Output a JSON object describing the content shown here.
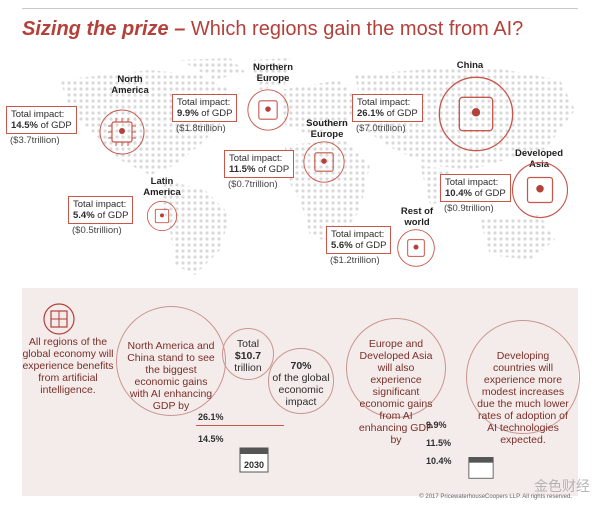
{
  "title": {
    "lead": "Sizing the prize –",
    "rest": " Which regions gain the most from AI?"
  },
  "regions": [
    {
      "id": "north-america",
      "name": "North America",
      "impact_label": "Total impact:",
      "pct": "14.5%",
      "pct_suffix": " of GDP",
      "amount": "($3.7trillion)"
    },
    {
      "id": "northern-europe",
      "name": "Northern Europe",
      "impact_label": "Total impact:",
      "pct": "9.9%",
      "pct_suffix": " of GDP",
      "amount": "($1.8trillion)"
    },
    {
      "id": "southern-europe",
      "name": "Southern Europe",
      "impact_label": "Total impact:",
      "pct": "11.5%",
      "pct_suffix": " of GDP",
      "amount": "($0.7trillion)"
    },
    {
      "id": "china",
      "name": "China",
      "impact_label": "Total impact:",
      "pct": "26.1%",
      "pct_suffix": " of GDP",
      "amount": "($7.0trillion)"
    },
    {
      "id": "developed-asia",
      "name": "Developed Asia",
      "impact_label": "Total impact:",
      "pct": "10.4%",
      "pct_suffix": " of GDP",
      "amount": "($0.9trillion)"
    },
    {
      "id": "latin-america",
      "name": "Latin America",
      "impact_label": "Total impact:",
      "pct": "5.4%",
      "pct_suffix": " of GDP",
      "amount": "($0.5trillion)"
    },
    {
      "id": "rest-of-world",
      "name": "Rest of world",
      "impact_label": "Total impact:",
      "pct": "5.6%",
      "pct_suffix": " of GDP",
      "amount": "($1.2trillion)"
    }
  ],
  "bottom": {
    "intro": "All regions of the global economy will experience benefits from artificial intelligence.",
    "na_china": "North America and China stand to see the biggest economic gains with AI enhancing GDP by",
    "total_label": "Total",
    "total_value": "$10.7",
    "total_unit": "trillion",
    "share_pct": "70%",
    "share_text": "of the global economic impact",
    "na_china_values": [
      "26.1%",
      "14.5%"
    ],
    "europe_asia": "Europe and Developed Asia will also experience significant economic gains from AI enhancing GDP by",
    "europe_asia_values": [
      "9.9%",
      "11.5%",
      "10.4%"
    ],
    "developing": "Developing countries will experience more modest increases due the much lower rates of adoption of AI technologies expected.",
    "year": "2030"
  },
  "copyright": "© 2017 PricewaterhouseCoopers LLP. All rights reserved.",
  "watermark": "金色财经",
  "colors": {
    "accent": "#b4403a",
    "box_border": "#c7574b",
    "panel": "#f4ecea",
    "map_dots": "#d9d9d9"
  }
}
